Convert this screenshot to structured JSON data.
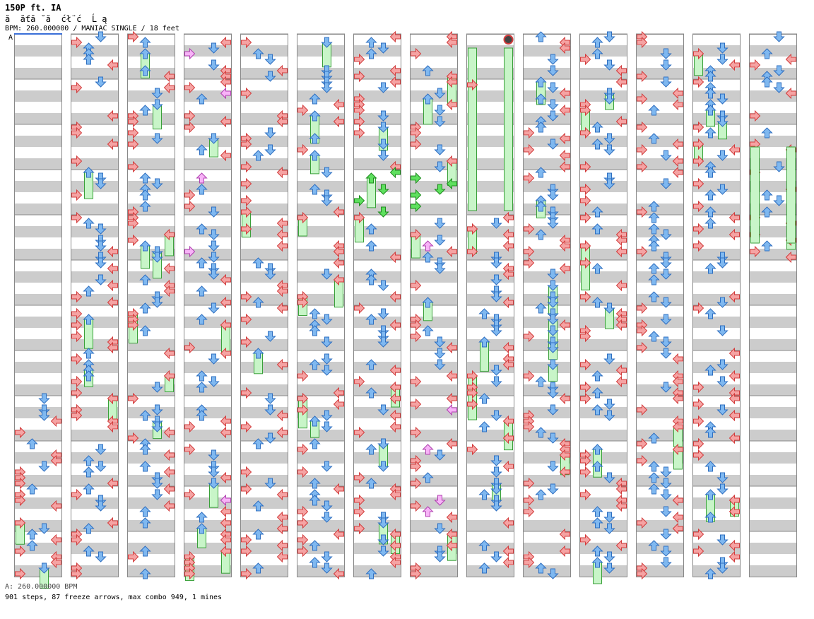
{
  "header": {
    "title": "150P ft. IA",
    "subtitle": "ă  ăťă ˘ă  ćł¨ć  Ĺ ą",
    "info": "BPM: 260.000000 / MANIAC SINGLE / 18 feet",
    "bpm_marker": "A"
  },
  "footer": {
    "bpm_line": "A: 260.000000 BPM",
    "stats": "901 steps, 87 freeze arrows, max combo 949, 1 mines"
  },
  "chart_data": {
    "type": "step-chart",
    "difficulty": "MANIAC",
    "style": "SINGLE",
    "feet": 18,
    "bpm": 260,
    "steps": 901,
    "freeze_arrows": 87,
    "max_combo": 949,
    "mines": 1,
    "columns": 14,
    "measures_per_column": 12
  },
  "colors": {
    "left": "#f5a3a3",
    "left_stroke": "#d23c3c",
    "down": "#7fb8f0",
    "down_stroke": "#2f6fc0",
    "freeze": "#c8f5c8",
    "freeze_stroke": "#3aa03a",
    "shade": "#cccccc",
    "special": "#f7b3f7",
    "green": "#5ee05e"
  }
}
